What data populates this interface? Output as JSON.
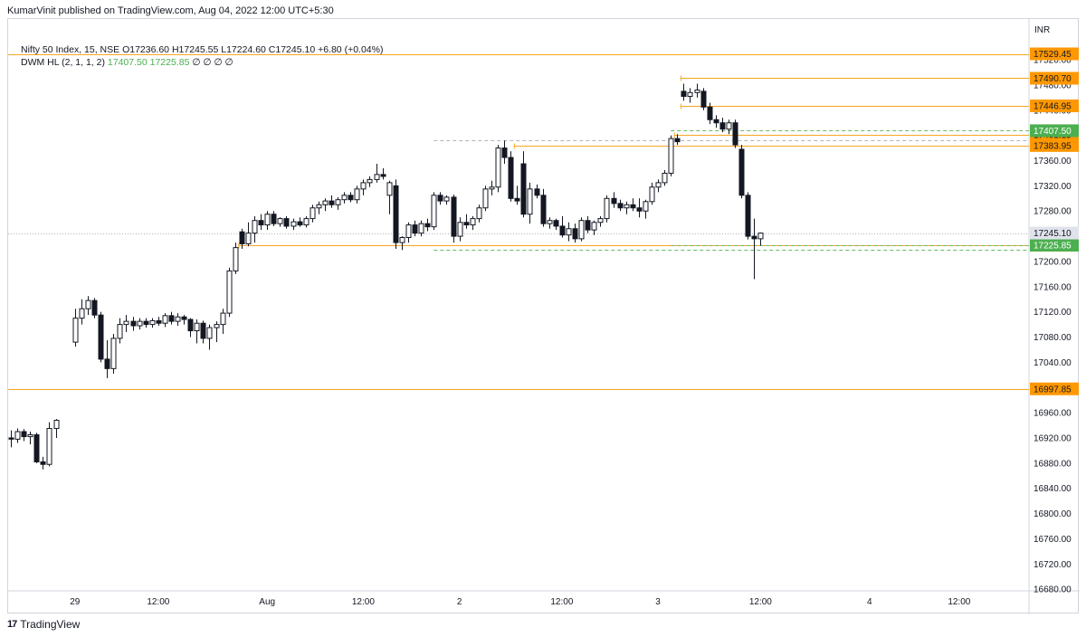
{
  "publish_line": "KumarVinit published on TradingView.com, Aug 04, 2022 12:00 UTC+5:30",
  "legend": {
    "symbol": "Nifty 50 Index, 15, NSE",
    "ohlc": "O17236.60 H17245.55 L17224.60 C17245.10 +6.80 (+0.04%)",
    "indicator_name": "DWM HL (2, 1, 1, 2)",
    "indicator_v1": "17407.50",
    "indicator_v2": "17225.85",
    "indicator_rest": "∅ ∅ ∅ ∅"
  },
  "footer": {
    "brand": "TradingView",
    "logo": "17"
  },
  "colors": {
    "level_line": "#f5a623",
    "level_badge": "#ff9800",
    "green_badge": "#4caf50",
    "current_badge": "#e0e3eb",
    "candle_up_fill": "#ffffff",
    "candle_down_fill": "#131722",
    "candle_border": "#131722",
    "grid": "#e0e3eb"
  },
  "chart_data": {
    "type": "candlestick",
    "currency": "INR",
    "ylim": [
      16660,
      17560
    ],
    "y_ticks": [
      17520,
      17480,
      17440,
      17400,
      17360,
      17320,
      17280,
      17240,
      17200,
      17160,
      17120,
      17080,
      17040,
      17000,
      16960,
      16920,
      16880,
      16840,
      16800,
      16760,
      16720,
      16680
    ],
    "x_labels": [
      {
        "label": "29",
        "i": 10
      },
      {
        "label": "12:00",
        "i": 23
      },
      {
        "label": "Aug",
        "i": 40
      },
      {
        "label": "12:00",
        "i": 55
      },
      {
        "label": "2",
        "i": 70
      },
      {
        "label": "12:00",
        "i": 86
      },
      {
        "label": "3",
        "i": 101
      },
      {
        "label": "12:00",
        "i": 117
      },
      {
        "label": "4",
        "i": 134
      },
      {
        "label": "12:00",
        "i": 148
      }
    ],
    "candles": [
      {
        "i": 0,
        "o": 16920,
        "h": 16932,
        "l": 16905,
        "c": 16918
      },
      {
        "i": 1,
        "o": 16918,
        "h": 16935,
        "l": 16912,
        "c": 16930
      },
      {
        "i": 2,
        "o": 16930,
        "h": 16934,
        "l": 16915,
        "c": 16922
      },
      {
        "i": 3,
        "o": 16922,
        "h": 16930,
        "l": 16910,
        "c": 16925
      },
      {
        "i": 4,
        "o": 16925,
        "h": 16928,
        "l": 16880,
        "c": 16882
      },
      {
        "i": 5,
        "o": 16882,
        "h": 16890,
        "l": 16870,
        "c": 16878
      },
      {
        "i": 6,
        "o": 16878,
        "h": 16945,
        "l": 16875,
        "c": 16935
      },
      {
        "i": 7,
        "o": 16935,
        "h": 16950,
        "l": 16920,
        "c": 16948
      },
      {
        "i": 10,
        "o": 17072,
        "h": 17125,
        "l": 17065,
        "c": 17110
      },
      {
        "i": 11,
        "o": 17110,
        "h": 17140,
        "l": 17100,
        "c": 17125
      },
      {
        "i": 12,
        "o": 17125,
        "h": 17145,
        "l": 17115,
        "c": 17138
      },
      {
        "i": 13,
        "o": 17138,
        "h": 17142,
        "l": 17110,
        "c": 17115
      },
      {
        "i": 14,
        "o": 17115,
        "h": 17120,
        "l": 17040,
        "c": 17045
      },
      {
        "i": 15,
        "o": 17045,
        "h": 17075,
        "l": 17015,
        "c": 17030
      },
      {
        "i": 16,
        "o": 17030,
        "h": 17085,
        "l": 17022,
        "c": 17078
      },
      {
        "i": 17,
        "o": 17078,
        "h": 17110,
        "l": 17070,
        "c": 17100
      },
      {
        "i": 18,
        "o": 17100,
        "h": 17115,
        "l": 17088,
        "c": 17105
      },
      {
        "i": 19,
        "o": 17105,
        "h": 17112,
        "l": 17090,
        "c": 17098
      },
      {
        "i": 20,
        "o": 17098,
        "h": 17110,
        "l": 17092,
        "c": 17105
      },
      {
        "i": 21,
        "o": 17105,
        "h": 17110,
        "l": 17095,
        "c": 17100
      },
      {
        "i": 22,
        "o": 17100,
        "h": 17110,
        "l": 17095,
        "c": 17106
      },
      {
        "i": 23,
        "o": 17106,
        "h": 17112,
        "l": 17098,
        "c": 17102
      },
      {
        "i": 24,
        "o": 17102,
        "h": 17118,
        "l": 17096,
        "c": 17114
      },
      {
        "i": 25,
        "o": 17114,
        "h": 17120,
        "l": 17100,
        "c": 17105
      },
      {
        "i": 26,
        "o": 17105,
        "h": 17118,
        "l": 17098,
        "c": 17112
      },
      {
        "i": 27,
        "o": 17112,
        "h": 17115,
        "l": 17100,
        "c": 17108
      },
      {
        "i": 28,
        "o": 17108,
        "h": 17110,
        "l": 17080,
        "c": 17090
      },
      {
        "i": 29,
        "o": 17090,
        "h": 17108,
        "l": 17070,
        "c": 17102
      },
      {
        "i": 30,
        "o": 17102,
        "h": 17106,
        "l": 17070,
        "c": 17078
      },
      {
        "i": 31,
        "o": 17078,
        "h": 17100,
        "l": 17060,
        "c": 17095
      },
      {
        "i": 32,
        "o": 17095,
        "h": 17105,
        "l": 17072,
        "c": 17100
      },
      {
        "i": 33,
        "o": 17100,
        "h": 17125,
        "l": 17085,
        "c": 17118
      },
      {
        "i": 34,
        "o": 17118,
        "h": 17190,
        "l": 17112,
        "c": 17185
      },
      {
        "i": 35,
        "o": 17185,
        "h": 17230,
        "l": 17180,
        "c": 17222
      },
      {
        "i": 36,
        "o": 17247,
        "h": 17252,
        "l": 17220,
        "c": 17228
      },
      {
        "i": 37,
        "o": 17228,
        "h": 17262,
        "l": 17224,
        "c": 17245
      },
      {
        "i": 38,
        "o": 17245,
        "h": 17272,
        "l": 17230,
        "c": 17265
      },
      {
        "i": 39,
        "o": 17265,
        "h": 17275,
        "l": 17250,
        "c": 17258
      },
      {
        "i": 40,
        "o": 17258,
        "h": 17280,
        "l": 17250,
        "c": 17275
      },
      {
        "i": 41,
        "o": 17275,
        "h": 17280,
        "l": 17256,
        "c": 17260
      },
      {
        "i": 42,
        "o": 17260,
        "h": 17270,
        "l": 17255,
        "c": 17268
      },
      {
        "i": 43,
        "o": 17268,
        "h": 17272,
        "l": 17252,
        "c": 17256
      },
      {
        "i": 44,
        "o": 17256,
        "h": 17268,
        "l": 17250,
        "c": 17263
      },
      {
        "i": 45,
        "o": 17263,
        "h": 17270,
        "l": 17255,
        "c": 17258
      },
      {
        "i": 46,
        "o": 17258,
        "h": 17272,
        "l": 17254,
        "c": 17268
      },
      {
        "i": 47,
        "o": 17268,
        "h": 17290,
        "l": 17262,
        "c": 17285
      },
      {
        "i": 48,
        "o": 17285,
        "h": 17295,
        "l": 17275,
        "c": 17290
      },
      {
        "i": 49,
        "o": 17290,
        "h": 17300,
        "l": 17280,
        "c": 17296
      },
      {
        "i": 50,
        "o": 17296,
        "h": 17305,
        "l": 17285,
        "c": 17290
      },
      {
        "i": 51,
        "o": 17290,
        "h": 17302,
        "l": 17282,
        "c": 17298
      },
      {
        "i": 52,
        "o": 17298,
        "h": 17310,
        "l": 17292,
        "c": 17305
      },
      {
        "i": 53,
        "o": 17305,
        "h": 17310,
        "l": 17294,
        "c": 17298
      },
      {
        "i": 54,
        "o": 17298,
        "h": 17320,
        "l": 17292,
        "c": 17315
      },
      {
        "i": 55,
        "o": 17315,
        "h": 17330,
        "l": 17305,
        "c": 17325
      },
      {
        "i": 56,
        "o": 17325,
        "h": 17335,
        "l": 17318,
        "c": 17330
      },
      {
        "i": 57,
        "o": 17330,
        "h": 17355,
        "l": 17325,
        "c": 17338
      },
      {
        "i": 58,
        "o": 17338,
        "h": 17348,
        "l": 17330,
        "c": 17335
      },
      {
        "i": 59,
        "o": 17305,
        "h": 17328,
        "l": 17275,
        "c": 17325
      },
      {
        "i": 60,
        "o": 17320,
        "h": 17330,
        "l": 17220,
        "c": 17230
      },
      {
        "i": 61,
        "o": 17230,
        "h": 17240,
        "l": 17218,
        "c": 17238
      },
      {
        "i": 62,
        "o": 17238,
        "h": 17262,
        "l": 17230,
        "c": 17258
      },
      {
        "i": 63,
        "o": 17258,
        "h": 17265,
        "l": 17240,
        "c": 17245
      },
      {
        "i": 64,
        "o": 17245,
        "h": 17265,
        "l": 17240,
        "c": 17260
      },
      {
        "i": 65,
        "o": 17260,
        "h": 17268,
        "l": 17248,
        "c": 17255
      },
      {
        "i": 66,
        "o": 17255,
        "h": 17310,
        "l": 17250,
        "c": 17305
      },
      {
        "i": 67,
        "o": 17305,
        "h": 17310,
        "l": 17290,
        "c": 17296
      },
      {
        "i": 68,
        "o": 17296,
        "h": 17305,
        "l": 17290,
        "c": 17302
      },
      {
        "i": 69,
        "o": 17302,
        "h": 17306,
        "l": 17230,
        "c": 17240
      },
      {
        "i": 70,
        "o": 17240,
        "h": 17270,
        "l": 17232,
        "c": 17262
      },
      {
        "i": 71,
        "o": 17262,
        "h": 17275,
        "l": 17252,
        "c": 17258
      },
      {
        "i": 72,
        "o": 17258,
        "h": 17272,
        "l": 17250,
        "c": 17268
      },
      {
        "i": 73,
        "o": 17268,
        "h": 17290,
        "l": 17262,
        "c": 17285
      },
      {
        "i": 74,
        "o": 17285,
        "h": 17320,
        "l": 17280,
        "c": 17315
      },
      {
        "i": 75,
        "o": 17315,
        "h": 17328,
        "l": 17305,
        "c": 17318
      },
      {
        "i": 76,
        "o": 17318,
        "h": 17385,
        "l": 17310,
        "c": 17380
      },
      {
        "i": 77,
        "o": 17380,
        "h": 17392,
        "l": 17355,
        "c": 17365
      },
      {
        "i": 78,
        "o": 17365,
        "h": 17375,
        "l": 17295,
        "c": 17300
      },
      {
        "i": 79,
        "o": 17300,
        "h": 17320,
        "l": 17290,
        "c": 17296
      },
      {
        "i": 80,
        "o": 17355,
        "h": 17375,
        "l": 17270,
        "c": 17275
      },
      {
        "i": 81,
        "o": 17275,
        "h": 17325,
        "l": 17260,
        "c": 17315
      },
      {
        "i": 82,
        "o": 17315,
        "h": 17322,
        "l": 17300,
        "c": 17305
      },
      {
        "i": 83,
        "o": 17305,
        "h": 17315,
        "l": 17255,
        "c": 17260
      },
      {
        "i": 84,
        "o": 17260,
        "h": 17270,
        "l": 17252,
        "c": 17265
      },
      {
        "i": 85,
        "o": 17265,
        "h": 17268,
        "l": 17250,
        "c": 17256
      },
      {
        "i": 86,
        "o": 17256,
        "h": 17272,
        "l": 17238,
        "c": 17242
      },
      {
        "i": 87,
        "o": 17242,
        "h": 17262,
        "l": 17232,
        "c": 17252
      },
      {
        "i": 88,
        "o": 17252,
        "h": 17260,
        "l": 17230,
        "c": 17236
      },
      {
        "i": 89,
        "o": 17236,
        "h": 17270,
        "l": 17232,
        "c": 17265
      },
      {
        "i": 90,
        "o": 17265,
        "h": 17272,
        "l": 17245,
        "c": 17250
      },
      {
        "i": 91,
        "o": 17250,
        "h": 17265,
        "l": 17242,
        "c": 17262
      },
      {
        "i": 92,
        "o": 17262,
        "h": 17272,
        "l": 17255,
        "c": 17268
      },
      {
        "i": 93,
        "o": 17268,
        "h": 17305,
        "l": 17262,
        "c": 17300
      },
      {
        "i": 94,
        "o": 17300,
        "h": 17310,
        "l": 17285,
        "c": 17292
      },
      {
        "i": 95,
        "o": 17292,
        "h": 17298,
        "l": 17280,
        "c": 17285
      },
      {
        "i": 96,
        "o": 17285,
        "h": 17295,
        "l": 17275,
        "c": 17290
      },
      {
        "i": 97,
        "o": 17290,
        "h": 17300,
        "l": 17280,
        "c": 17285
      },
      {
        "i": 98,
        "o": 17285,
        "h": 17300,
        "l": 17270,
        "c": 17280
      },
      {
        "i": 99,
        "o": 17280,
        "h": 17298,
        "l": 17268,
        "c": 17295
      },
      {
        "i": 100,
        "o": 17295,
        "h": 17325,
        "l": 17290,
        "c": 17318
      },
      {
        "i": 101,
        "o": 17318,
        "h": 17330,
        "l": 17310,
        "c": 17325
      },
      {
        "i": 102,
        "o": 17325,
        "h": 17345,
        "l": 17320,
        "c": 17340
      },
      {
        "i": 103,
        "o": 17340,
        "h": 17400,
        "l": 17335,
        "c": 17395
      },
      {
        "i": 104,
        "o": 17395,
        "h": 17402,
        "l": 17385,
        "c": 17390
      },
      {
        "i": 105,
        "o": 17470,
        "h": 17482,
        "l": 17455,
        "c": 17462
      },
      {
        "i": 106,
        "o": 17462,
        "h": 17475,
        "l": 17452,
        "c": 17468
      },
      {
        "i": 107,
        "o": 17468,
        "h": 17482,
        "l": 17460,
        "c": 17472
      },
      {
        "i": 108,
        "o": 17470,
        "h": 17475,
        "l": 17440,
        "c": 17445
      },
      {
        "i": 109,
        "o": 17445,
        "h": 17452,
        "l": 17418,
        "c": 17425
      },
      {
        "i": 110,
        "o": 17425,
        "h": 17432,
        "l": 17412,
        "c": 17420
      },
      {
        "i": 111,
        "o": 17420,
        "h": 17428,
        "l": 17405,
        "c": 17410
      },
      {
        "i": 112,
        "o": 17410,
        "h": 17425,
        "l": 17402,
        "c": 17420
      },
      {
        "i": 113,
        "o": 17420,
        "h": 17425,
        "l": 17380,
        "c": 17385
      },
      {
        "i": 114,
        "o": 17378,
        "h": 17385,
        "l": 17300,
        "c": 17305
      },
      {
        "i": 115,
        "o": 17305,
        "h": 17310,
        "l": 17235,
        "c": 17240
      },
      {
        "i": 116,
        "o": 17240,
        "h": 17268,
        "l": 17172,
        "c": 17236
      },
      {
        "i": 117,
        "o": 17236,
        "h": 17246,
        "l": 17225,
        "c": 17245
      }
    ],
    "levels": [
      {
        "value": 17529.45,
        "label": "17529.45",
        "from": "start"
      },
      {
        "value": 17490.7,
        "label": "17490.70",
        "from": 105
      },
      {
        "value": 17446.95,
        "label": "17446.95",
        "from": 105
      },
      {
        "value": 17401.15,
        "label": "17401.15",
        "from": 104
      },
      {
        "value": 17383.95,
        "label": "17383.95",
        "from": 79
      },
      {
        "value": 17225.8,
        "label": "17225.80",
        "from": 36
      },
      {
        "value": 16997.85,
        "label": "16997.85",
        "from": "start"
      }
    ],
    "indicator_lines": [
      {
        "value": 17407.5,
        "label": "17407.50",
        "from": 103,
        "style": "green-dashed-badge"
      },
      {
        "value": 17225.85,
        "label": "17225.85",
        "from": 103,
        "style": "green-dashed-badge"
      },
      {
        "value": 17392.0,
        "label": "",
        "from": 66,
        "style": "gray-dashed"
      },
      {
        "value": 17218.0,
        "label": "",
        "from": 66,
        "style": "green-dashed"
      },
      {
        "value": 17245.1,
        "label": "17245.10",
        "from": "start",
        "style": "current"
      }
    ]
  }
}
